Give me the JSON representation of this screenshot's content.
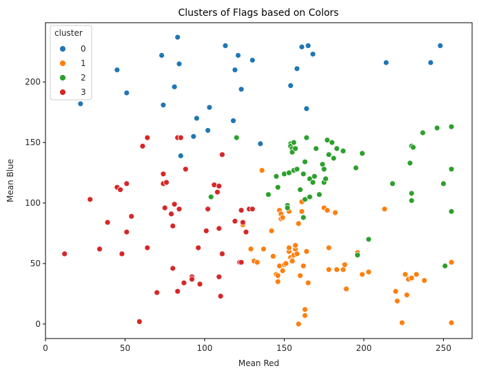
{
  "chart_data": {
    "type": "scatter",
    "title": "Clusters of Flags based on Colors",
    "xlabel": "Mean Red",
    "ylabel": "Mean Blue",
    "xlim": [
      0,
      268
    ],
    "ylim": [
      -12,
      249
    ],
    "xticks": [
      0,
      50,
      100,
      150,
      200,
      250
    ],
    "yticks": [
      0,
      50,
      100,
      150,
      200
    ],
    "grid": false,
    "legend": {
      "title": "cluster",
      "placement": "top-left"
    },
    "series": [
      {
        "name": "0",
        "color": "#1f77b4",
        "points": [
          [
            22,
            182
          ],
          [
            45,
            210
          ],
          [
            51,
            191
          ],
          [
            73,
            222
          ],
          [
            74,
            181
          ],
          [
            81,
            196
          ],
          [
            83,
            237
          ],
          [
            84,
            215
          ],
          [
            95,
            170
          ],
          [
            103,
            179
          ],
          [
            93,
            155
          ],
          [
            102,
            160
          ],
          [
            113,
            230
          ],
          [
            118,
            168
          ],
          [
            119,
            210
          ],
          [
            121,
            222
          ],
          [
            123,
            194
          ],
          [
            130,
            218
          ],
          [
            135,
            149
          ],
          [
            154,
            197
          ],
          [
            158,
            211
          ],
          [
            161,
            229
          ],
          [
            165,
            230
          ],
          [
            168,
            223
          ],
          [
            164,
            178
          ],
          [
            214,
            216
          ],
          [
            242,
            216
          ],
          [
            248,
            230
          ],
          [
            85,
            139
          ]
        ]
      },
      {
        "name": "1",
        "color": "#ff7f0e",
        "points": [
          [
            136,
            127
          ],
          [
            124,
            82
          ],
          [
            129,
            62
          ],
          [
            131,
            52
          ],
          [
            133,
            51
          ],
          [
            137,
            62
          ],
          [
            142,
            77
          ],
          [
            143,
            56
          ],
          [
            145,
            41
          ],
          [
            146,
            40
          ],
          [
            146,
            35
          ],
          [
            147,
            48
          ],
          [
            147,
            94
          ],
          [
            148,
            87
          ],
          [
            148,
            91
          ],
          [
            149,
            88
          ],
          [
            149,
            44
          ],
          [
            150,
            49
          ],
          [
            151,
            50
          ],
          [
            152,
            96
          ],
          [
            153,
            60
          ],
          [
            153,
            63
          ],
          [
            153,
            93
          ],
          [
            154,
            55
          ],
          [
            155,
            53
          ],
          [
            155,
            52
          ],
          [
            156,
            57
          ],
          [
            157,
            62
          ],
          [
            157,
            65
          ],
          [
            158,
            58
          ],
          [
            159,
            83
          ],
          [
            160,
            40
          ],
          [
            161,
            101
          ],
          [
            161,
            93
          ],
          [
            162,
            48
          ],
          [
            163,
            12
          ],
          [
            163,
            7
          ],
          [
            164,
            60
          ],
          [
            165,
            34
          ],
          [
            175,
            96
          ],
          [
            177,
            94
          ],
          [
            178,
            63
          ],
          [
            178,
            45
          ],
          [
            182,
            92
          ],
          [
            183,
            45
          ],
          [
            187,
            45
          ],
          [
            188,
            49
          ],
          [
            189,
            29
          ],
          [
            196,
            59
          ],
          [
            199,
            41
          ],
          [
            203,
            43
          ],
          [
            213,
            95
          ],
          [
            220,
            27
          ],
          [
            221,
            19
          ],
          [
            224,
            1
          ],
          [
            226,
            41
          ],
          [
            227,
            24
          ],
          [
            228,
            37
          ],
          [
            230,
            38
          ],
          [
            233,
            41
          ],
          [
            238,
            36
          ],
          [
            255,
            51
          ],
          [
            255,
            1
          ],
          [
            159,
            0
          ]
        ]
      },
      {
        "name": "2",
        "color": "#2ca02c",
        "points": [
          [
            120,
            154
          ],
          [
            104,
            105
          ],
          [
            140,
            107
          ],
          [
            145,
            122
          ],
          [
            146,
            113
          ],
          [
            150,
            124
          ],
          [
            152,
            98
          ],
          [
            152,
            96
          ],
          [
            153,
            125
          ],
          [
            154,
            149
          ],
          [
            154,
            147
          ],
          [
            155,
            145
          ],
          [
            155,
            142
          ],
          [
            156,
            150
          ],
          [
            156,
            127
          ],
          [
            157,
            145
          ],
          [
            158,
            128
          ],
          [
            160,
            111
          ],
          [
            162,
            124
          ],
          [
            162,
            88
          ],
          [
            163,
            103
          ],
          [
            163,
            134
          ],
          [
            164,
            154
          ],
          [
            166,
            120
          ],
          [
            166,
            105
          ],
          [
            168,
            117
          ],
          [
            169,
            122
          ],
          [
            170,
            145
          ],
          [
            172,
            107
          ],
          [
            174,
            132
          ],
          [
            175,
            128
          ],
          [
            175,
            117
          ],
          [
            176,
            120
          ],
          [
            177,
            152
          ],
          [
            178,
            140
          ],
          [
            180,
            150
          ],
          [
            181,
            137
          ],
          [
            183,
            145
          ],
          [
            187,
            143
          ],
          [
            195,
            129
          ],
          [
            196,
            57
          ],
          [
            199,
            141
          ],
          [
            203,
            70
          ],
          [
            218,
            116
          ],
          [
            229,
            133
          ],
          [
            230,
            108
          ],
          [
            230,
            102
          ],
          [
            230,
            147
          ],
          [
            231,
            146
          ],
          [
            237,
            158
          ],
          [
            246,
            162
          ],
          [
            250,
            116
          ],
          [
            251,
            48
          ],
          [
            255,
            163
          ],
          [
            255,
            128
          ],
          [
            255,
            93
          ]
        ]
      },
      {
        "name": "3",
        "color": "#d62728",
        "points": [
          [
            12,
            58
          ],
          [
            28,
            103
          ],
          [
            34,
            62
          ],
          [
            39,
            84
          ],
          [
            45,
            113
          ],
          [
            47,
            111
          ],
          [
            48,
            58
          ],
          [
            51,
            76
          ],
          [
            51,
            116
          ],
          [
            54,
            89
          ],
          [
            59,
            2
          ],
          [
            61,
            147
          ],
          [
            64,
            154
          ],
          [
            64,
            63
          ],
          [
            70,
            26
          ],
          [
            74,
            124
          ],
          [
            74,
            116
          ],
          [
            75,
            96
          ],
          [
            76,
            117
          ],
          [
            79,
            91
          ],
          [
            80,
            81
          ],
          [
            80,
            46
          ],
          [
            81,
            99
          ],
          [
            83,
            27
          ],
          [
            83,
            154
          ],
          [
            84,
            95
          ],
          [
            85,
            154
          ],
          [
            87,
            34
          ],
          [
            88,
            128
          ],
          [
            92,
            39
          ],
          [
            92,
            37
          ],
          [
            96,
            63
          ],
          [
            97,
            33
          ],
          [
            101,
            77
          ],
          [
            102,
            95
          ],
          [
            106,
            115
          ],
          [
            108,
            109
          ],
          [
            109,
            114
          ],
          [
            109,
            79
          ],
          [
            109,
            39
          ],
          [
            110,
            23
          ],
          [
            111,
            58
          ],
          [
            111,
            140
          ],
          [
            119,
            85
          ],
          [
            122,
            51
          ],
          [
            123,
            51
          ],
          [
            123,
            94
          ],
          [
            124,
            84
          ],
          [
            126,
            76
          ],
          [
            128,
            95
          ],
          [
            130,
            95
          ]
        ]
      }
    ]
  }
}
